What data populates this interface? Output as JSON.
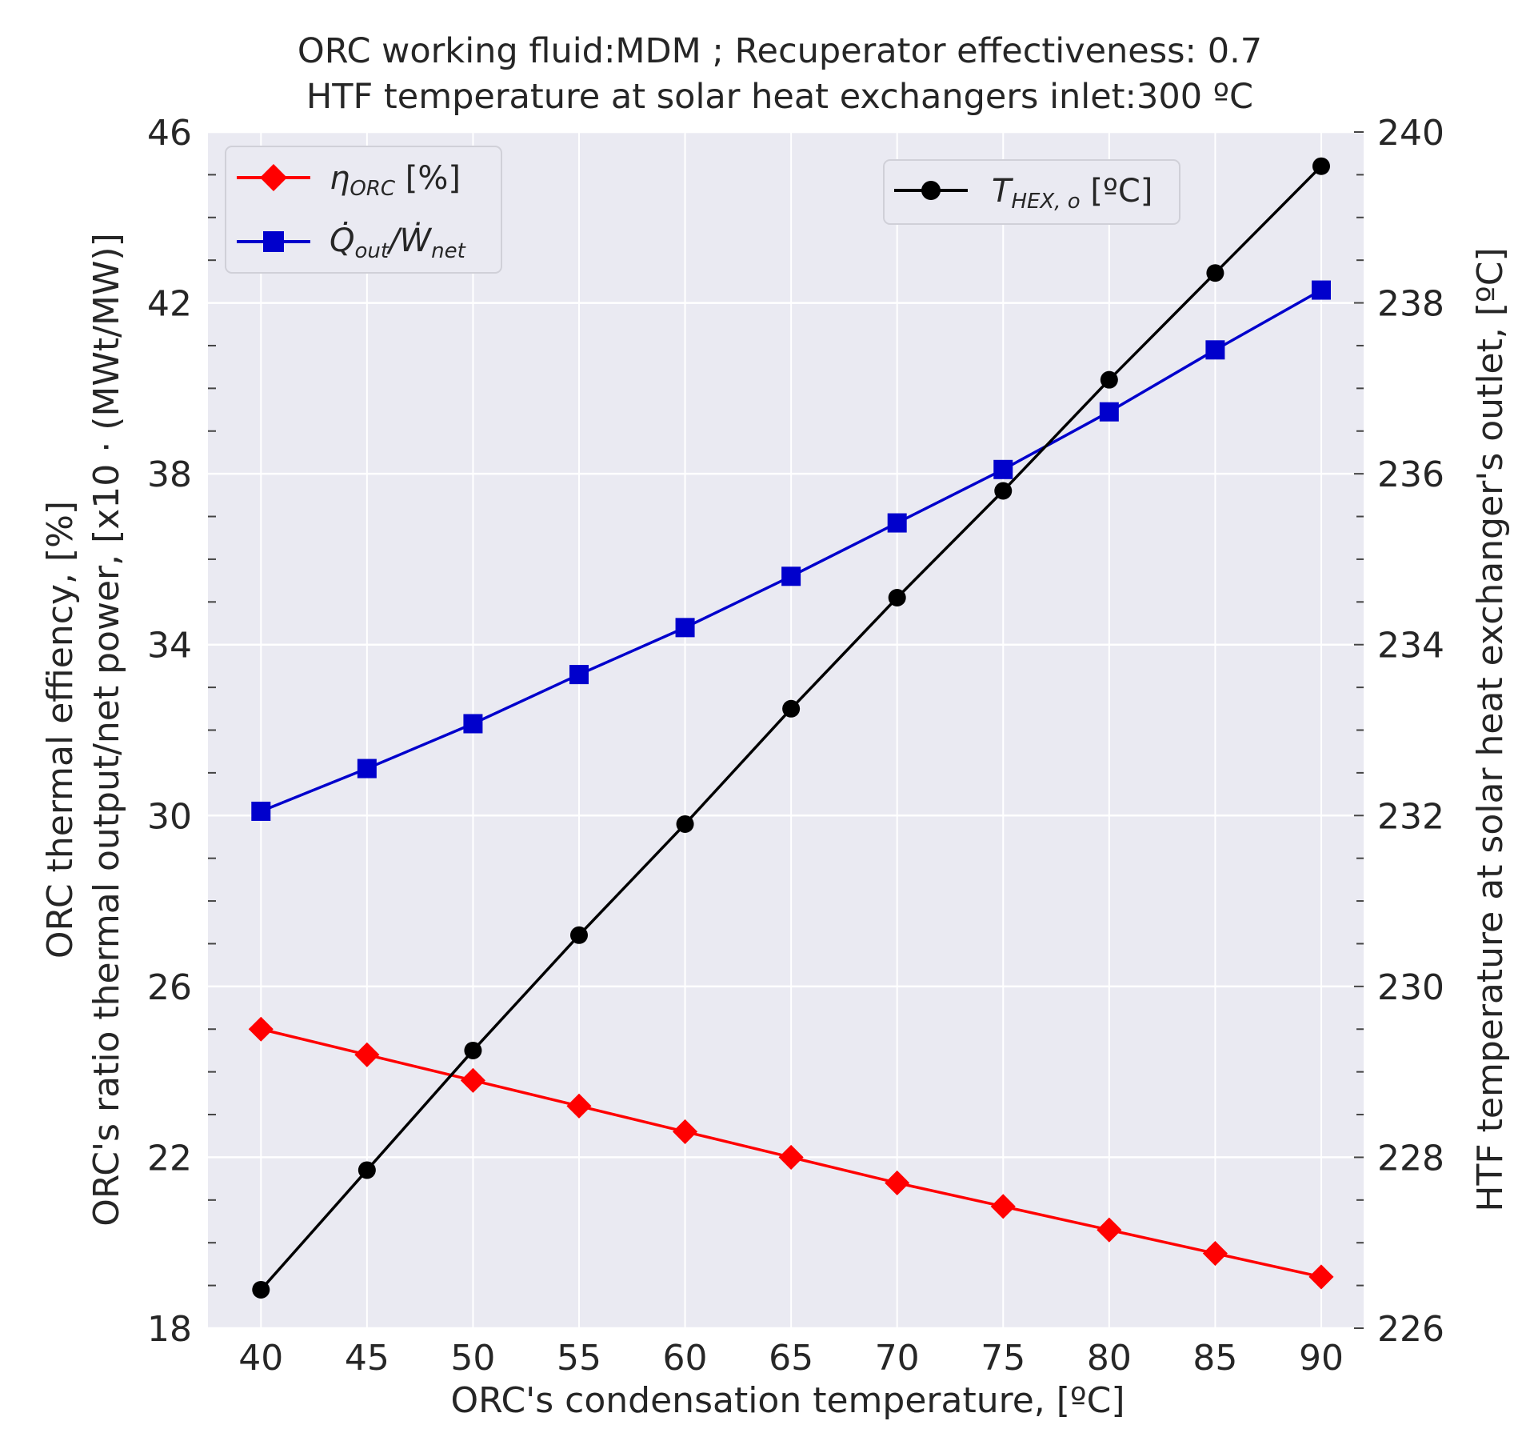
{
  "chart_data": {
    "type": "line",
    "title": "ORC working fluid:MDM ; Recuperator effectiveness: 0.7",
    "subtitle": "HTF temperature at solar heat exchangers inlet:300 ºC",
    "xlabel": "ORC's condensation temperature, [ºC]",
    "ylabel_left_line1": "ORC thermal effiency, [%]",
    "ylabel_left_line2": "ORC's ratio thermal output/net power, [x10 · (MWt/MW)]",
    "ylabel_right": "HTF temperature at solar heat exchanger's outlet, [ºC]",
    "x": [
      40,
      45,
      50,
      55,
      60,
      65,
      70,
      75,
      80,
      85,
      90
    ],
    "xlim": [
      37.5,
      92
    ],
    "xticks": [
      "40",
      "45",
      "50",
      "55",
      "60",
      "65",
      "70",
      "75",
      "80",
      "85",
      "90"
    ],
    "ylim_left": [
      18,
      46
    ],
    "yticks_left": [
      "18",
      "22",
      "26",
      "30",
      "34",
      "38",
      "42",
      "46"
    ],
    "ylim_right": [
      226,
      240
    ],
    "yticks_right": [
      "226",
      "228",
      "230",
      "232",
      "234",
      "236",
      "238",
      "240"
    ],
    "grid": true,
    "series": [
      {
        "name": "ηORC [%]",
        "axis": "left",
        "color": "#ff0000",
        "marker": "diamond",
        "values": [
          25.0,
          24.4,
          23.8,
          23.2,
          22.6,
          22.0,
          21.4,
          20.85,
          20.3,
          19.75,
          19.2
        ]
      },
      {
        "name": "Q̇out/Ẇnet",
        "axis": "left",
        "color": "#0000cc",
        "marker": "square",
        "values": [
          30.1,
          31.1,
          32.15,
          33.3,
          34.4,
          35.6,
          36.85,
          38.1,
          39.45,
          40.9,
          42.3
        ]
      },
      {
        "name": "THEX,o [ºC]",
        "axis": "right",
        "color": "#000000",
        "marker": "circle",
        "values": [
          226.45,
          227.85,
          229.25,
          230.6,
          231.9,
          233.25,
          234.55,
          235.8,
          237.1,
          238.35,
          239.6
        ]
      }
    ],
    "legend_left": {
      "position": "upper-left",
      "entries": [
        {
          "main": "η",
          "sub": "ORC",
          "suffix": " [%]"
        },
        {
          "main": "Q̇",
          "sub": "out",
          "mid": "/Ẇ",
          "sub2": "net",
          "suffix": ""
        }
      ]
    },
    "legend_right": {
      "position": "upper-right",
      "entries": [
        {
          "main": "T",
          "sub": "HEX, o",
          "suffix": " [ºC]"
        }
      ]
    }
  }
}
